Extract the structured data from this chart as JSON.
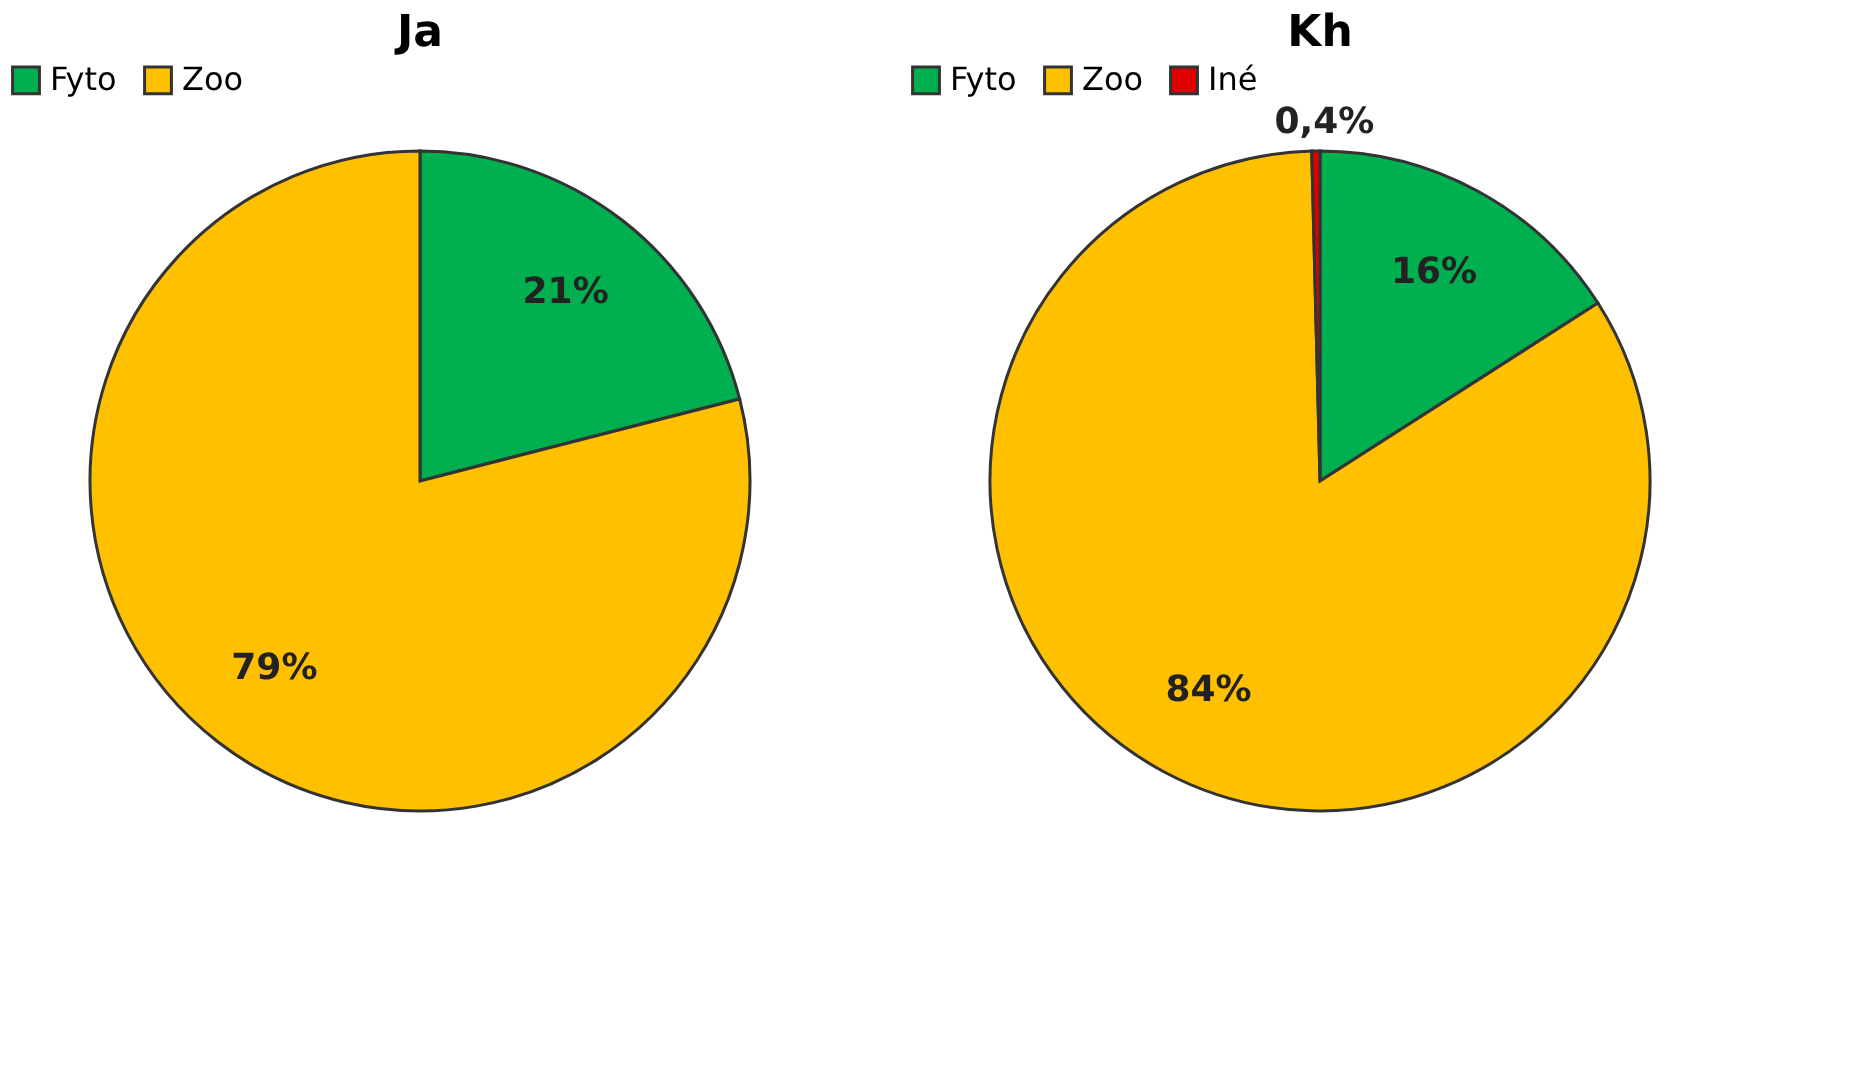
{
  "chart_data": [
    {
      "type": "pie",
      "title": "Ja",
      "categories": [
        "Fyto",
        "Zoo"
      ],
      "values": [
        21,
        79
      ],
      "colors": [
        "#00b050",
        "#ffc000"
      ],
      "value_labels": [
        "21%",
        "79%"
      ],
      "legend": "top"
    },
    {
      "type": "pie",
      "title": "Kh",
      "categories": [
        "Fyto",
        "Zoo",
        "Iné"
      ],
      "values": [
        16,
        84,
        0.4
      ],
      "colors": [
        "#00b050",
        "#ffc000",
        "#e00000"
      ],
      "value_labels": [
        "16%",
        "84%",
        "0,4%"
      ],
      "legend": "top"
    }
  ]
}
